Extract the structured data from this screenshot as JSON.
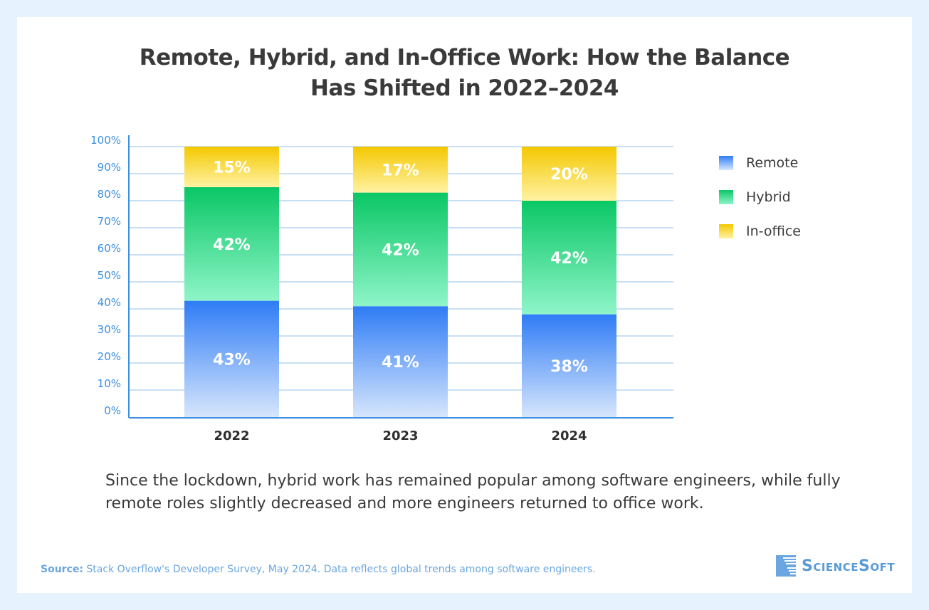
{
  "title_line1": "Remote, Hybrid, and In-Office Work: How the Balance",
  "title_line2": "Has Shifted in 2022–2024",
  "description": "Since the lockdown, hybrid work has remained popular among software engineers, while fully remote roles slightly decreased and more engineers returned to office work.",
  "source_label": "Source:",
  "source_text": " Stack Overflow's Developer Survey, May 2024. Data reflects global trends among software engineers.",
  "logo_text": "ScienceSoft",
  "chart_data": {
    "type": "bar",
    "stacked": true,
    "categories": [
      "2022",
      "2023",
      "2024"
    ],
    "series": [
      {
        "name": "Remote",
        "values": [
          43,
          41,
          38
        ],
        "labels": [
          "43%",
          "41%",
          "38%"
        ],
        "color_top": "#2f7cf6",
        "color_bottom": "#d6e6fc"
      },
      {
        "name": "Hybrid",
        "values": [
          42,
          42,
          42
        ],
        "labels": [
          "42%",
          "42%",
          "42%"
        ],
        "color_top": "#0ac765",
        "color_bottom": "#8ff5c9"
      },
      {
        "name": "In-office",
        "values": [
          15,
          17,
          20
        ],
        "labels": [
          "15%",
          "17%",
          "20%"
        ],
        "color_top": "#f4c800",
        "color_bottom": "#fff2a3"
      }
    ],
    "yticks": [
      "0%",
      "10%",
      "20%",
      "30%",
      "40%",
      "50%",
      "60%",
      "70%",
      "80%",
      "90%",
      "100%"
    ],
    "ylim": [
      0,
      100
    ],
    "grid": true,
    "legend": "right",
    "axis_color": "#3d8fe0"
  }
}
